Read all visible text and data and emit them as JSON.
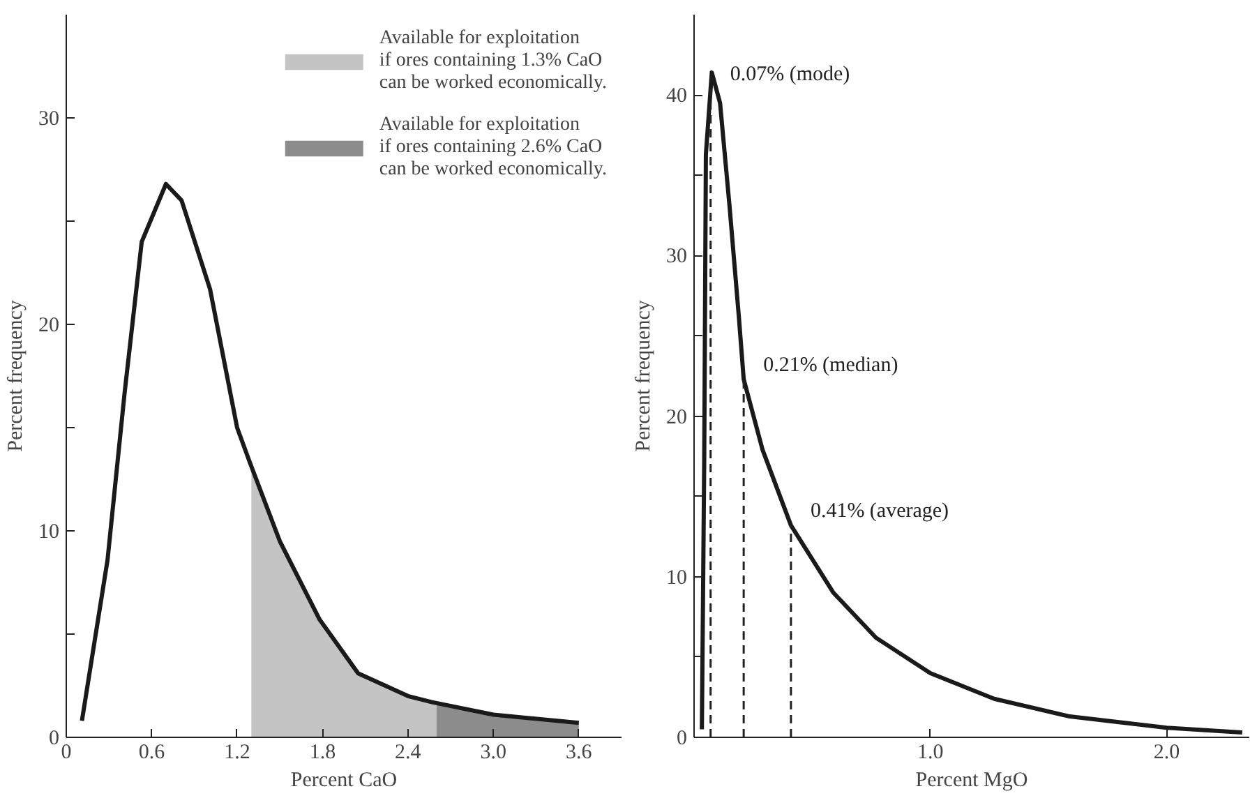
{
  "chart_data": [
    {
      "type": "line",
      "xlabel": "Percent CaO",
      "ylabel": "Percent frequency",
      "xlim": [
        0,
        3.9
      ],
      "ylim": [
        0,
        35
      ],
      "legend": "top right",
      "grid": false,
      "xticks": [
        0,
        0.6,
        1.2,
        1.8,
        2.4,
        {
          "value": 3,
          "label": "3.0"
        },
        3.6
      ],
      "yticks": [
        0,
        {
          "value": 5,
          "label": null
        },
        10,
        {
          "value": 15,
          "label": null
        },
        20,
        {
          "value": 25,
          "label": null
        },
        30
      ],
      "series": [
        {
          "type": "area",
          "name": "Available for exploitation if ores containing 1.3% CaO can be worked economically.",
          "color": "#c4c4c4",
          "x": [
            1.3,
            1.5,
            1.78,
            2.05,
            2.4,
            2.6
          ],
          "values": [
            13.3,
            9.5,
            5.7,
            3.1,
            2.0,
            1.7
          ]
        },
        {
          "type": "area",
          "name": "Available for exploitation if ores containing 2.6% CaO can be worked economically.",
          "color": "#8c8c8c",
          "x": [
            2.6,
            3.0,
            3.6
          ],
          "values": [
            1.7,
            1.1,
            0.7
          ]
        },
        {
          "color": "#1a1a1a",
          "x": [
            0.11,
            0.29,
            0.41,
            0.53,
            0.7,
            0.81,
            1.01,
            1.2,
            1.29,
            1.5,
            1.78,
            2.05,
            2.4,
            2.57,
            3.0,
            3.6
          ],
          "values": [
            0.8,
            8.6,
            16.7,
            24,
            26.8,
            26,
            21.7,
            15,
            13.3,
            9.5,
            5.7,
            3.1,
            2.0,
            1.7,
            1.1,
            0.7
          ]
        }
      ]
    },
    {
      "type": "line",
      "xlabel": "Percent MgO",
      "ylabel": "Percent frequency",
      "xlim": [
        0,
        2.35
      ],
      "ylim": [
        0,
        45
      ],
      "grid": false,
      "xticks": [
        {
          "value": 1,
          "label": "1.0"
        },
        {
          "value": 2,
          "label": "2.0"
        }
      ],
      "yticks": [
        0,
        {
          "value": 5,
          "label": null
        },
        10,
        {
          "value": 15,
          "label": null
        },
        20,
        {
          "value": 25,
          "label": null
        },
        30,
        {
          "value": 35,
          "label": null
        },
        40
      ],
      "series": [
        {
          "color": "#1a1a1a",
          "x": [
            0.033,
            0.043,
            0.05,
            0.075,
            0.11,
            0.15,
            0.19,
            0.21,
            0.29,
            0.41,
            0.59,
            0.77,
            1.0,
            1.27,
            1.59,
            2.0,
            2.32
          ],
          "values": [
            0.5,
            17.3,
            36.3,
            41.4,
            39.5,
            33.1,
            26.1,
            22.3,
            17.9,
            13.2,
            9.0,
            6.2,
            4.0,
            2.4,
            1.3,
            0.6,
            0.3
          ]
        }
      ],
      "ref_lines": [
        {
          "axis": "x",
          "value": 0.07,
          "label": "0.07% (mode)",
          "line_style": "dashed"
        },
        {
          "axis": "x",
          "value": 0.21,
          "label": "0.21% (median)",
          "line_style": "dashed"
        },
        {
          "axis": "x",
          "value": 0.41,
          "label": "0.41% (average)",
          "line_style": "dashed"
        }
      ]
    }
  ]
}
